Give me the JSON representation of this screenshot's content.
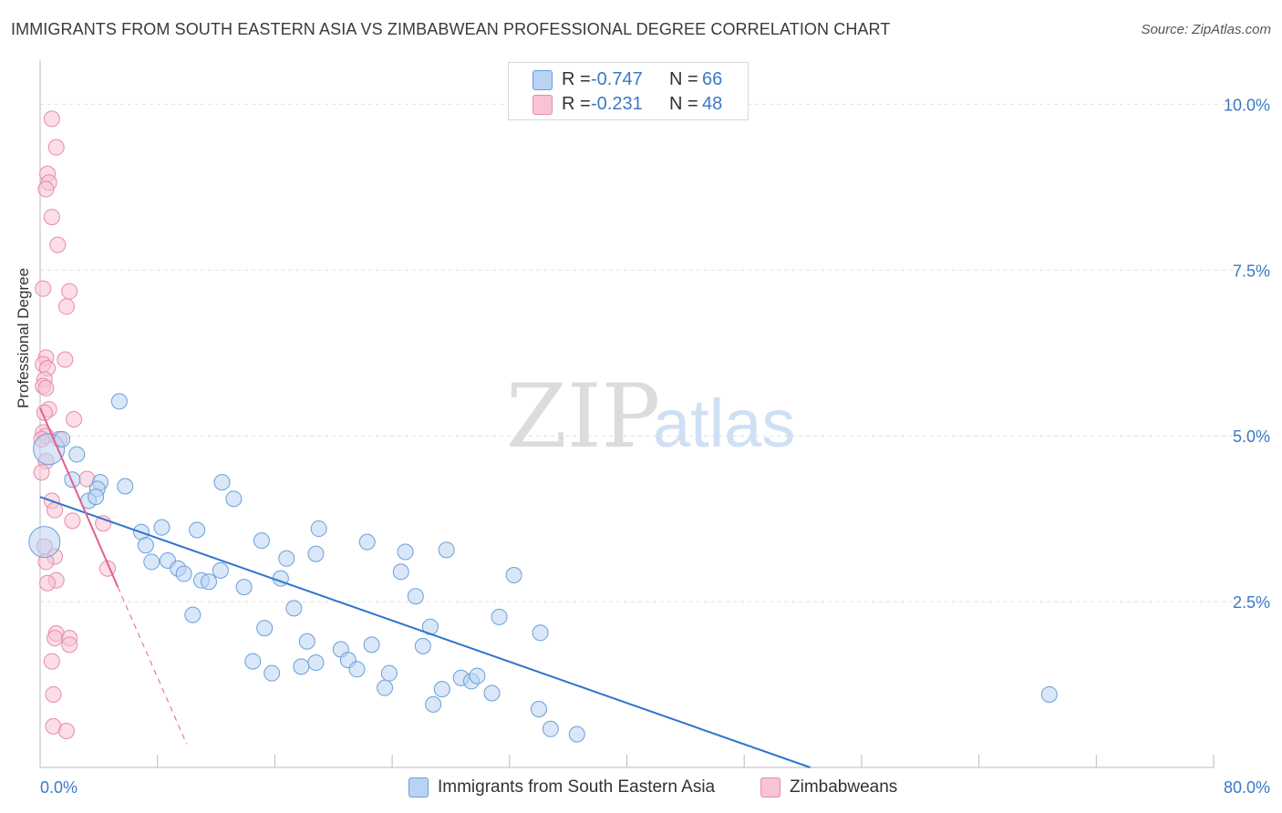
{
  "title": "IMMIGRANTS FROM SOUTH EASTERN ASIA VS ZIMBABWEAN PROFESSIONAL DEGREE CORRELATION CHART",
  "source": "Source: ZipAtlas.com",
  "colors": {
    "blue_fill": "#b9d3f2",
    "blue_stroke": "#6b9fd8",
    "blue_line": "#2f74d0",
    "pink_fill": "#f8c3d4",
    "pink_stroke": "#e88aaa",
    "pink_line": "#e2608c",
    "axis_text": "#3a78c8",
    "grid": "#e0e0e0"
  },
  "legend_top": {
    "rows": [
      {
        "r_label": "R =",
        "r_value": "-0.747",
        "n_label": "N =",
        "n_value": "66",
        "series": "blue"
      },
      {
        "r_label": "R =",
        "r_value": "-0.231",
        "n_label": "N =",
        "n_value": "48",
        "series": "pink"
      }
    ]
  },
  "legend_bottom": {
    "items": [
      {
        "label": "Immigrants from South Eastern Asia",
        "series": "blue"
      },
      {
        "label": "Zimbabweans",
        "series": "pink"
      }
    ]
  },
  "watermark": {
    "part1": "ZIP",
    "part2": "atlas"
  },
  "chart_data": {
    "type": "scatter",
    "title": "IMMIGRANTS FROM SOUTH EASTERN ASIA VS ZIMBABWEAN PROFESSIONAL DEGREE CORRELATION CHART",
    "xlabel": "",
    "ylabel": "Professional Degree",
    "xlim": [
      0,
      80
    ],
    "ylim": [
      0,
      10.5
    ],
    "x_tick_labels": [
      "0.0%",
      "80.0%"
    ],
    "y_ticks": [
      2.5,
      5.0,
      7.5,
      10.0
    ],
    "y_tick_labels": [
      "2.5%",
      "5.0%",
      "7.5%",
      "10.0%"
    ],
    "grid": true,
    "series": [
      {
        "name": "Immigrants from South Eastern Asia",
        "color": "blue",
        "R": -0.747,
        "N": 66,
        "trend": {
          "x": [
            0,
            52.5
          ],
          "y": [
            4.08,
            0
          ]
        },
        "points": [
          {
            "x": 0.3,
            "y": 3.4,
            "big": true
          },
          {
            "x": 0.6,
            "y": 4.8,
            "big": true
          },
          {
            "x": 1.5,
            "y": 4.95
          },
          {
            "x": 2.5,
            "y": 4.72
          },
          {
            "x": 2.2,
            "y": 4.34
          },
          {
            "x": 4.1,
            "y": 4.3
          },
          {
            "x": 3.9,
            "y": 4.2
          },
          {
            "x": 5.4,
            "y": 5.52
          },
          {
            "x": 5.8,
            "y": 4.24
          },
          {
            "x": 3.3,
            "y": 4.02
          },
          {
            "x": 3.8,
            "y": 4.08
          },
          {
            "x": 6.9,
            "y": 3.55
          },
          {
            "x": 7.2,
            "y": 3.35
          },
          {
            "x": 8.3,
            "y": 3.62
          },
          {
            "x": 7.6,
            "y": 3.1
          },
          {
            "x": 8.7,
            "y": 3.12
          },
          {
            "x": 9.4,
            "y": 3.0
          },
          {
            "x": 9.8,
            "y": 2.92
          },
          {
            "x": 11.0,
            "y": 2.82
          },
          {
            "x": 11.5,
            "y": 2.8
          },
          {
            "x": 10.7,
            "y": 3.58
          },
          {
            "x": 12.3,
            "y": 2.97
          },
          {
            "x": 12.4,
            "y": 4.3
          },
          {
            "x": 13.2,
            "y": 4.05
          },
          {
            "x": 13.9,
            "y": 2.72
          },
          {
            "x": 15.1,
            "y": 3.42
          },
          {
            "x": 16.4,
            "y": 2.85
          },
          {
            "x": 16.8,
            "y": 3.15
          },
          {
            "x": 17.3,
            "y": 2.4
          },
          {
            "x": 18.8,
            "y": 3.22
          },
          {
            "x": 19.0,
            "y": 3.6
          },
          {
            "x": 10.4,
            "y": 2.3
          },
          {
            "x": 15.3,
            "y": 2.1
          },
          {
            "x": 14.5,
            "y": 1.6
          },
          {
            "x": 15.8,
            "y": 1.42
          },
          {
            "x": 17.8,
            "y": 1.52
          },
          {
            "x": 18.2,
            "y": 1.9
          },
          {
            "x": 18.8,
            "y": 1.58
          },
          {
            "x": 20.5,
            "y": 1.78
          },
          {
            "x": 21.0,
            "y": 1.62
          },
          {
            "x": 21.6,
            "y": 1.48
          },
          {
            "x": 22.3,
            "y": 3.4
          },
          {
            "x": 22.6,
            "y": 1.85
          },
          {
            "x": 23.5,
            "y": 1.2
          },
          {
            "x": 23.8,
            "y": 1.42
          },
          {
            "x": 24.6,
            "y": 2.95
          },
          {
            "x": 24.9,
            "y": 3.25
          },
          {
            "x": 25.6,
            "y": 2.58
          },
          {
            "x": 26.1,
            "y": 1.83
          },
          {
            "x": 26.6,
            "y": 2.12
          },
          {
            "x": 26.8,
            "y": 0.95
          },
          {
            "x": 27.4,
            "y": 1.18
          },
          {
            "x": 27.7,
            "y": 3.28
          },
          {
            "x": 28.7,
            "y": 1.35
          },
          {
            "x": 29.4,
            "y": 1.3
          },
          {
            "x": 29.8,
            "y": 1.38
          },
          {
            "x": 30.8,
            "y": 1.12
          },
          {
            "x": 31.3,
            "y": 2.27
          },
          {
            "x": 32.3,
            "y": 2.9
          },
          {
            "x": 34.1,
            "y": 2.03
          },
          {
            "x": 34.0,
            "y": 0.88
          },
          {
            "x": 34.8,
            "y": 0.58
          },
          {
            "x": 36.6,
            "y": 0.5
          },
          {
            "x": 68.8,
            "y": 1.1
          }
        ]
      },
      {
        "name": "Zimbabweans",
        "color": "pink",
        "R": -0.231,
        "N": 48,
        "trend_solid": {
          "x": [
            0,
            5.3
          ],
          "y": [
            5.42,
            2.72
          ]
        },
        "trend_dashed": {
          "x": [
            5.3,
            10.0
          ],
          "y": [
            2.72,
            0.35
          ]
        },
        "points": [
          {
            "x": 0.8,
            "y": 9.78
          },
          {
            "x": 1.1,
            "y": 9.35
          },
          {
            "x": 0.5,
            "y": 8.95
          },
          {
            "x": 0.6,
            "y": 8.82
          },
          {
            "x": 0.4,
            "y": 8.72
          },
          {
            "x": 0.8,
            "y": 8.3
          },
          {
            "x": 1.2,
            "y": 7.88
          },
          {
            "x": 0.2,
            "y": 7.22
          },
          {
            "x": 2.0,
            "y": 7.18
          },
          {
            "x": 1.8,
            "y": 6.95
          },
          {
            "x": 0.4,
            "y": 6.18
          },
          {
            "x": 1.7,
            "y": 6.15
          },
          {
            "x": 0.2,
            "y": 6.08
          },
          {
            "x": 0.5,
            "y": 6.02
          },
          {
            "x": 0.3,
            "y": 5.85
          },
          {
            "x": 0.2,
            "y": 5.75
          },
          {
            "x": 0.4,
            "y": 5.72
          },
          {
            "x": 0.6,
            "y": 5.4
          },
          {
            "x": 0.3,
            "y": 5.35
          },
          {
            "x": 2.3,
            "y": 5.25
          },
          {
            "x": 0.2,
            "y": 5.05
          },
          {
            "x": 0.4,
            "y": 5.0
          },
          {
            "x": 0.1,
            "y": 4.95
          },
          {
            "x": 1.3,
            "y": 4.95
          },
          {
            "x": 0.4,
            "y": 4.62
          },
          {
            "x": 0.1,
            "y": 4.45
          },
          {
            "x": 3.2,
            "y": 4.35
          },
          {
            "x": 0.8,
            "y": 4.02
          },
          {
            "x": 1.0,
            "y": 3.88
          },
          {
            "x": 2.2,
            "y": 3.72
          },
          {
            "x": 4.3,
            "y": 3.68
          },
          {
            "x": 0.3,
            "y": 3.33
          },
          {
            "x": 1.0,
            "y": 3.18
          },
          {
            "x": 0.4,
            "y": 3.1
          },
          {
            "x": 4.6,
            "y": 3.0
          },
          {
            "x": 1.1,
            "y": 2.82
          },
          {
            "x": 0.5,
            "y": 2.78
          },
          {
            "x": 1.1,
            "y": 2.02
          },
          {
            "x": 1.0,
            "y": 1.95
          },
          {
            "x": 2.0,
            "y": 1.95
          },
          {
            "x": 2.0,
            "y": 1.85
          },
          {
            "x": 0.8,
            "y": 1.6
          },
          {
            "x": 0.9,
            "y": 1.1
          },
          {
            "x": 0.9,
            "y": 0.62
          },
          {
            "x": 1.8,
            "y": 0.55
          }
        ]
      }
    ]
  }
}
